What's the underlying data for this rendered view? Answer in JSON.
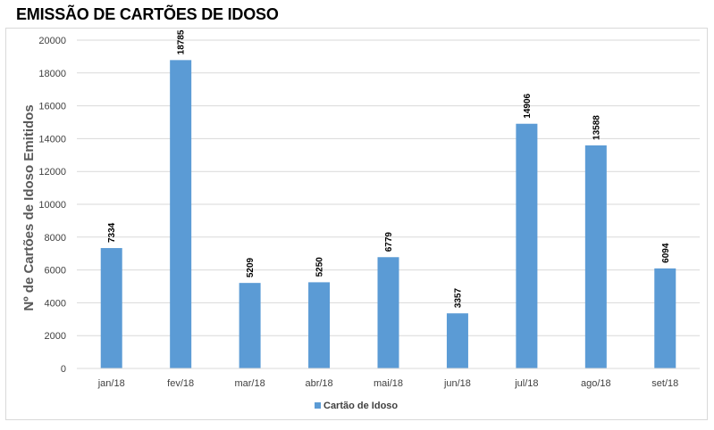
{
  "chart_data": {
    "type": "bar",
    "title": "EMISSÃO DE CARTÕES DE IDOSO",
    "xlabel": "",
    "ylabel": "Nº de Cartões de Idoso Emitidos",
    "categories": [
      "jan/18",
      "fev/18",
      "mar/18",
      "abr/18",
      "mai/18",
      "jun/18",
      "jul/18",
      "ago/18",
      "set/18"
    ],
    "series": [
      {
        "name": "Cartão de Idoso",
        "color": "#5b9bd5",
        "values": [
          7334,
          18785,
          5209,
          5250,
          6779,
          3357,
          14906,
          13588,
          6094
        ]
      }
    ],
    "ylim": [
      0,
      20000
    ],
    "yticks": [
      0,
      2000,
      4000,
      6000,
      8000,
      10000,
      12000,
      14000,
      16000,
      18000,
      20000
    ],
    "grid": true,
    "legend_position": "bottom",
    "data_labels": true
  }
}
